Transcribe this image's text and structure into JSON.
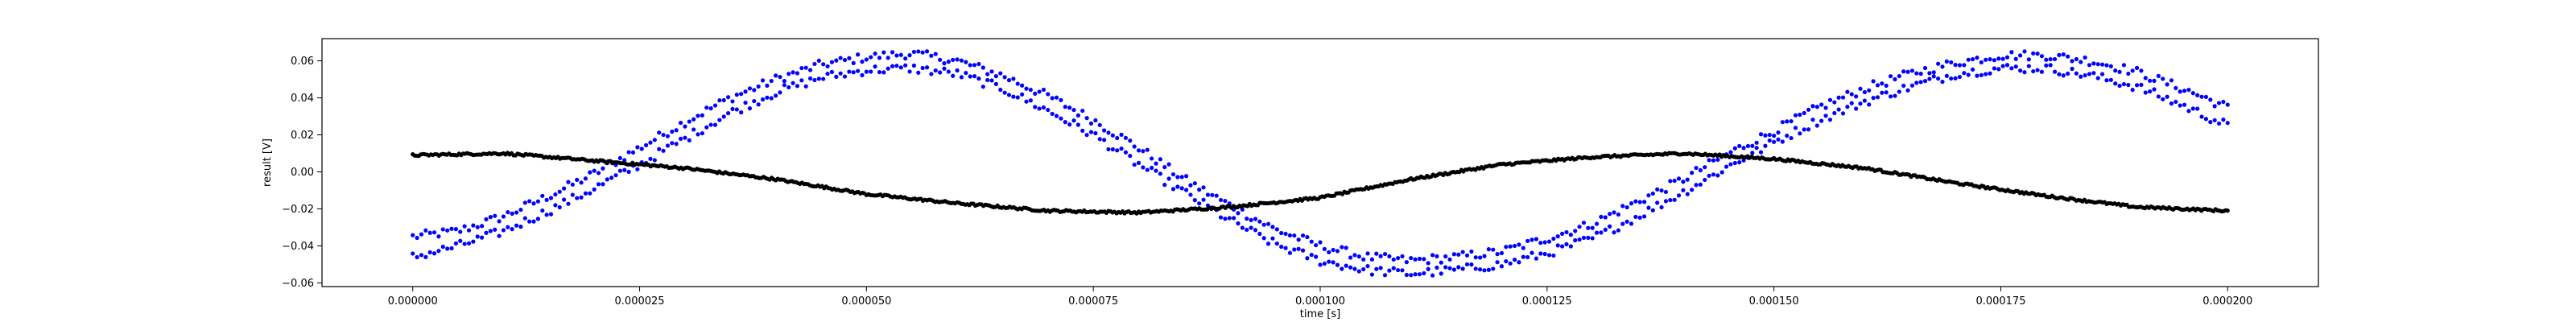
{
  "chart_data": {
    "type": "scatter",
    "title": "",
    "xlabel": "time [s]",
    "ylabel": "result [V]",
    "xlim": [
      -1e-05,
      0.00021
    ],
    "ylim": [
      -0.062,
      0.072
    ],
    "grid": false,
    "xticks": [
      0,
      2.5e-05,
      5e-05,
      7.5e-05,
      0.0001,
      0.000125,
      0.00015,
      0.000175,
      0.0002
    ],
    "xtick_labels": [
      "0.000000",
      "0.000025",
      "0.000050",
      "0.000075",
      "0.000100",
      "0.000125",
      "0.000150",
      "0.000175",
      "0.000200"
    ],
    "yticks": [
      -0.06,
      -0.04,
      -0.02,
      0.0,
      0.02,
      0.04,
      0.06
    ],
    "ytick_labels": [
      "−0.06",
      "−0.04",
      "−0.02",
      "0.00",
      "0.02",
      "0.04",
      "0.06"
    ],
    "series": [
      {
        "color": "#0000ff",
        "marker": "dot",
        "x": [
          0,
          5e-06,
          1e-05,
          1.5e-05,
          2e-05,
          2.5e-05,
          3e-05,
          3.5e-05,
          4e-05,
          4.5e-05,
          5e-05,
          5.5e-05,
          6e-05,
          6.5e-05,
          7e-05,
          7.5e-05,
          8e-05,
          8.5e-05,
          9e-05,
          9.5e-05,
          0.0001,
          0.000105,
          0.00011,
          0.000115,
          0.00012,
          0.000125,
          0.00013,
          0.000135,
          0.00014,
          0.000145,
          0.00015,
          0.000155,
          0.00016,
          0.000165,
          0.00017,
          0.000175,
          0.00018,
          0.000185,
          0.00019,
          0.000195,
          0.0002
        ],
        "y_upper": [
          -0.035,
          -0.032,
          -0.024,
          -0.013,
          -0.001,
          0.013,
          0.027,
          0.04,
          0.05,
          0.058,
          0.062,
          0.064,
          0.06,
          0.052,
          0.041,
          0.028,
          0.013,
          -0.004,
          -0.018,
          -0.031,
          -0.04,
          -0.046,
          -0.048,
          -0.046,
          -0.043,
          -0.036,
          -0.028,
          -0.016,
          -0.004,
          0.01,
          0.022,
          0.035,
          0.045,
          0.053,
          0.059,
          0.063,
          0.063,
          0.06,
          0.054,
          0.045,
          0.035
        ],
        "y_lower": [
          -0.046,
          -0.04,
          -0.032,
          -0.021,
          -0.009,
          0.004,
          0.018,
          0.032,
          0.043,
          0.051,
          0.055,
          0.056,
          0.053,
          0.045,
          0.033,
          0.02,
          0.004,
          -0.011,
          -0.026,
          -0.039,
          -0.048,
          -0.053,
          -0.055,
          -0.053,
          -0.05,
          -0.044,
          -0.036,
          -0.024,
          -0.011,
          0.003,
          0.016,
          0.028,
          0.038,
          0.046,
          0.053,
          0.056,
          0.056,
          0.052,
          0.046,
          0.036,
          0.025
        ]
      },
      {
        "color": "#000000",
        "marker": "dot",
        "x": [
          0,
          1e-05,
          2e-05,
          3e-05,
          4e-05,
          5e-05,
          6e-05,
          7e-05,
          8e-05,
          9e-05,
          0.0001,
          0.00011,
          0.00012,
          0.00013,
          0.00014,
          0.00015,
          0.00016,
          0.00017,
          0.00018,
          0.00019,
          0.0002
        ],
        "y": [
          0.009,
          0.01,
          0.006,
          0.002,
          -0.004,
          -0.012,
          -0.017,
          -0.021,
          -0.022,
          -0.019,
          -0.014,
          -0.004,
          0.004,
          0.008,
          0.01,
          0.007,
          0.002,
          -0.006,
          -0.013,
          -0.019,
          -0.021
        ]
      }
    ]
  }
}
